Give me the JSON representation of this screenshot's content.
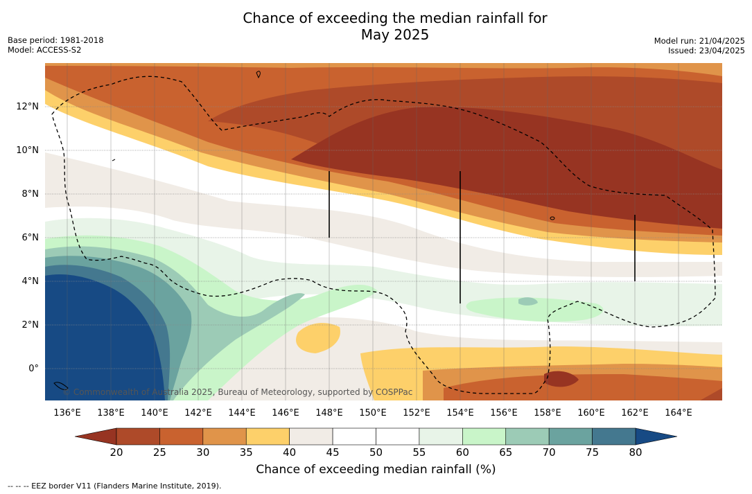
{
  "title_line1": "Chance of exceeding the median rainfall for",
  "title_line2": "May 2025",
  "base_period": "Base period: 1981-2018",
  "model": "Model: ACCESS-S2",
  "model_run": "Model run: 21/04/2025",
  "issued": "Issued: 23/04/2025",
  "lat_labels": [
    "12°N",
    "10°N",
    "8°N",
    "6°N",
    "4°N",
    "2°N",
    "0°"
  ],
  "lon_labels": [
    "136°E",
    "138°E",
    "140°E",
    "142°E",
    "144°E",
    "146°E",
    "148°E",
    "150°E",
    "152°E",
    "154°E",
    "156°E",
    "158°E",
    "160°E",
    "162°E",
    "164°E"
  ],
  "copyright": "© Commonwealth of Australia 2025, Bureau of Meteorology, supported by COSPPac",
  "colorbar": {
    "ticks": [
      "20",
      "25",
      "30",
      "35",
      "40",
      "45",
      "50",
      "55",
      "60",
      "65",
      "70",
      "75",
      "80"
    ],
    "colors": [
      "#ae4a29",
      "#c9622f",
      "#e0944a",
      "#fdd06a",
      "#f1ece6",
      "#ffffff",
      "#ffffff",
      "#e8f4e8",
      "#c9f5c9",
      "#9ccbb6",
      "#6ba39f",
      "#44788f"
    ],
    "under_color": "#973422",
    "over_color": "#174a84",
    "label": "Chance of exceeding median rainfall (%)"
  },
  "footnote": "--  --  -- EEZ border V11 (Flanders Marine Institute, 2019)."
}
